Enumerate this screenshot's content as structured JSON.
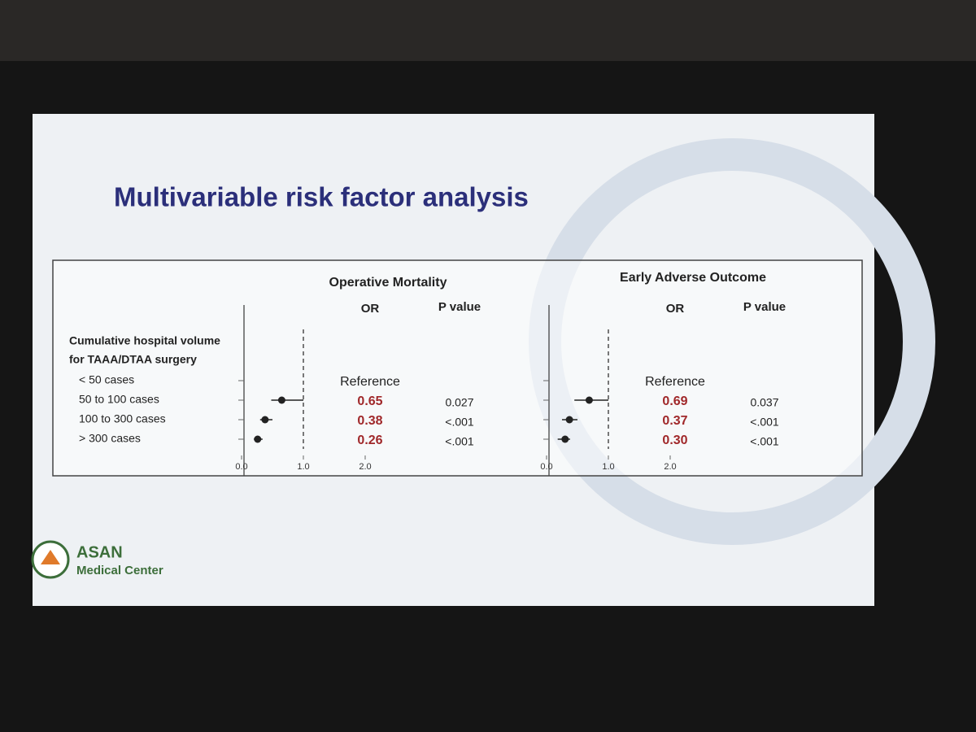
{
  "slide": {
    "title": "Multivariable risk factor analysis",
    "logo": [
      "ASAN",
      "Medical Center"
    ]
  },
  "row_group": [
    "Cumulative hospital volume",
    "for TAAA/DTAA surgery"
  ],
  "chart_data": [
    {
      "type": "forest",
      "title": "Operative Mortality",
      "columns": [
        "OR",
        "P value"
      ],
      "categories": [
        "< 50 cases",
        "50 to 100 cases",
        "100 to 300 cases",
        "> 300 cases"
      ],
      "values": [
        null,
        0.65,
        0.38,
        0.26
      ],
      "value_labels": [
        "Reference",
        "0.65",
        "0.38",
        "0.26"
      ],
      "ci_low": [
        null,
        0.48,
        0.3,
        0.2
      ],
      "ci_high": [
        null,
        1.0,
        0.5,
        0.34
      ],
      "p_values": [
        null,
        "0.027",
        "<.001",
        "<.001"
      ],
      "xlim": [
        0,
        5
      ],
      "xticks": [
        {
          "value": 0,
          "label": "0.0"
        },
        {
          "value": 1,
          "label": "1.0"
        },
        {
          "value": 2,
          "label": "2.0"
        }
      ],
      "reference_line": 1,
      "point_color": "#222222",
      "label_color": "#a0282a"
    },
    {
      "type": "forest",
      "title": "Early Adverse Outcome",
      "columns": [
        "OR",
        "P value"
      ],
      "values": [
        null,
        0.69,
        0.37,
        0.3
      ],
      "value_labels": [
        "Reference",
        "0.69",
        "0.37",
        "0.30"
      ],
      "ci_low": [
        null,
        0.45,
        0.25,
        0.18
      ],
      "ci_high": [
        null,
        1.0,
        0.5,
        0.38
      ],
      "p_values": [
        null,
        "0.037",
        "<.001",
        "<.001"
      ],
      "xlim": [
        0,
        5
      ],
      "xticks": [
        {
          "value": 0,
          "label": "0.0"
        },
        {
          "value": 1,
          "label": "1.0"
        },
        {
          "value": 2,
          "label": "2.0"
        }
      ],
      "reference_line": 1,
      "point_color": "#222222",
      "label_color": "#a0282a"
    }
  ]
}
